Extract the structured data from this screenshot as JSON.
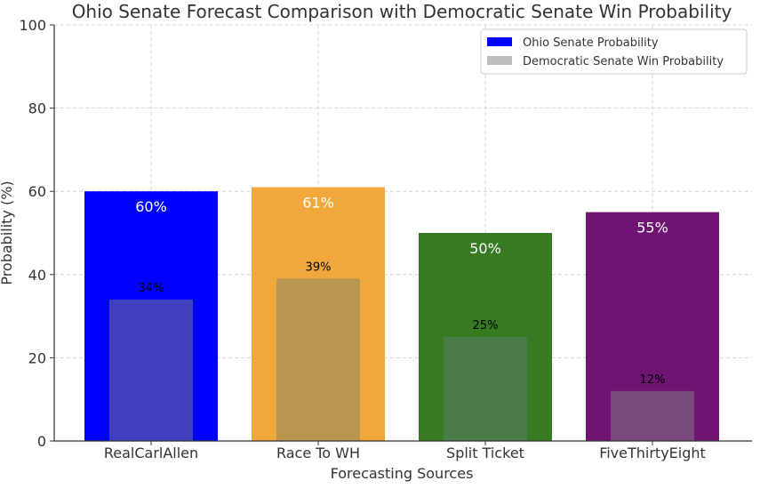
{
  "chart_data": {
    "type": "bar",
    "title": "Ohio Senate Forecast Comparison with Democratic Senate Win Probability",
    "xlabel": "Forecasting Sources",
    "ylabel": "Probability (%)",
    "ylim": [
      0,
      100
    ],
    "yticks": [
      0,
      20,
      40,
      60,
      80,
      100
    ],
    "grid": true,
    "legend_position": "top-right",
    "categories": [
      "RealCarlAllen",
      "Race To WH",
      "Split Ticket",
      "FiveThirtyEight"
    ],
    "series": [
      {
        "name": "Ohio Senate Probability",
        "values": [
          60,
          61,
          50,
          55
        ],
        "labels": [
          "60%",
          "61%",
          "50%",
          "55%"
        ],
        "colors": [
          "#0000ff",
          "#f0a83c",
          "#367a22",
          "#701474"
        ],
        "legend_color": "#0000ff"
      },
      {
        "name": "Democratic Senate Win Probability",
        "values": [
          34,
          39,
          25,
          12
        ],
        "labels": [
          "34%",
          "39%",
          "25%",
          "12%"
        ],
        "colors": [
          "#4040c0",
          "#b8964f",
          "#4b7c4a",
          "#7a4a7c"
        ],
        "legend_color": "#bdbdbd"
      }
    ]
  }
}
